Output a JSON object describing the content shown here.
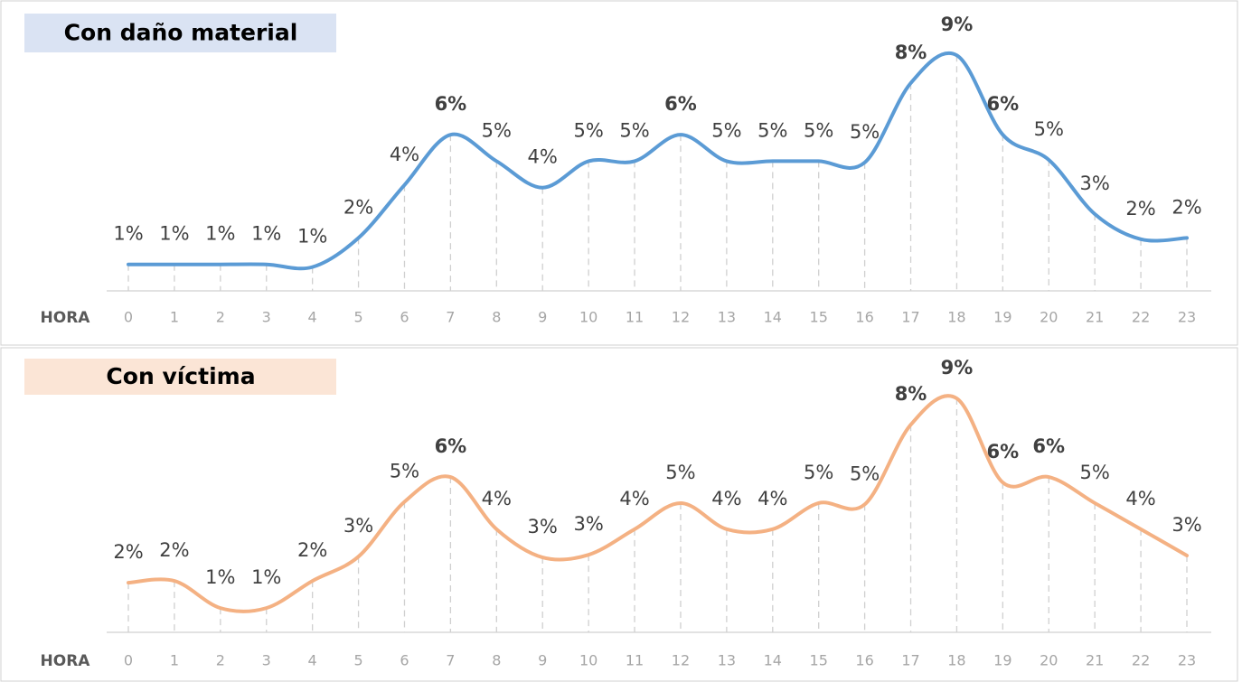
{
  "chart_data": [
    {
      "type": "line",
      "title": "Con daño material",
      "x_label": "HORA",
      "categories": [
        "0",
        "1",
        "2",
        "3",
        "4",
        "5",
        "6",
        "7",
        "8",
        "9",
        "10",
        "11",
        "12",
        "13",
        "14",
        "15",
        "16",
        "17",
        "18",
        "19",
        "20",
        "21",
        "22",
        "23"
      ],
      "series": [
        {
          "name": "Con daño material",
          "color": "#5b9bd5",
          "values": [
            1.0,
            1.0,
            1.0,
            1.0,
            0.9,
            2.0,
            4.0,
            5.9,
            4.9,
            3.9,
            4.9,
            4.9,
            5.9,
            4.9,
            4.9,
            4.9,
            4.85,
            7.85,
            8.9,
            5.9,
            4.95,
            2.9,
            1.95,
            2.0
          ],
          "value_labels": [
            "1%",
            "1%",
            "1%",
            "1%",
            "1%",
            "2%",
            "4%",
            "6%",
            "5%",
            "4%",
            "5%",
            "5%",
            "6%",
            "5%",
            "5%",
            "5%",
            "5%",
            "8%",
            "9%",
            "6%",
            "5%",
            "3%",
            "2%",
            "2%"
          ]
        }
      ],
      "emphasis": [
        7,
        12,
        17,
        18,
        19
      ],
      "title_color": "#dae3f3"
    },
    {
      "type": "line",
      "title": "Con víctima",
      "x_label": "HORA",
      "categories": [
        "0",
        "1",
        "2",
        "3",
        "4",
        "5",
        "6",
        "7",
        "8",
        "9",
        "10",
        "11",
        "12",
        "13",
        "14",
        "15",
        "16",
        "17",
        "18",
        "19",
        "20",
        "21",
        "22",
        "23"
      ],
      "series": [
        {
          "name": "Con víctima",
          "color": "#f4b183",
          "values": [
            1.9,
            1.97,
            0.93,
            0.93,
            1.97,
            2.9,
            5.0,
            5.95,
            3.95,
            2.87,
            2.97,
            3.95,
            4.95,
            3.95,
            3.95,
            4.95,
            4.9,
            7.95,
            8.96,
            5.74,
            5.95,
            4.95,
            3.95,
            2.94
          ],
          "value_labels": [
            "2%",
            "2%",
            "1%",
            "1%",
            "2%",
            "3%",
            "5%",
            "6%",
            "4%",
            "3%",
            "3%",
            "4%",
            "5%",
            "4%",
            "4%",
            "5%",
            "5%",
            "8%",
            "9%",
            "6%",
            "6%",
            "5%",
            "4%",
            "3%"
          ]
        }
      ],
      "emphasis": [
        7,
        17,
        18,
        19,
        20
      ],
      "title_color": "#fbe5d6"
    }
  ]
}
